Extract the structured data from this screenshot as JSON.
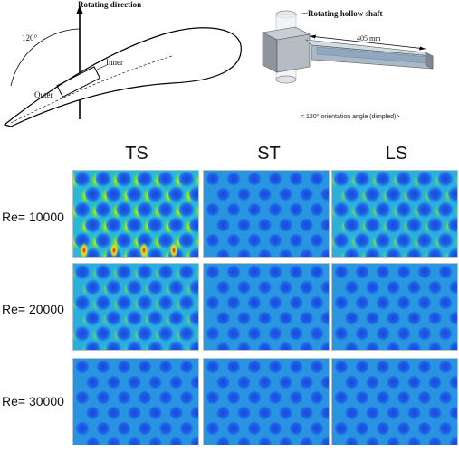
{
  "schematic": {
    "rotating_direction": "Rotating direction",
    "angle_label": "120°",
    "inner_label": "Inner",
    "outer_label": "Outer"
  },
  "apparatus": {
    "shaft_label": "Rotating hollow shaft",
    "length_label": "405 mm",
    "caption": "< 120° orientation angle (dimpled)>"
  },
  "grid": {
    "columns": [
      "TS",
      "ST",
      "LS"
    ],
    "rows": [
      "Re= 10000",
      "Re= 20000",
      "Re= 30000"
    ],
    "intensity": [
      [
        1.0,
        0.15,
        0.55
      ],
      [
        0.45,
        0.2,
        0.2
      ],
      [
        0.12,
        0.08,
        0.1
      ]
    ]
  },
  "colors": {
    "background_low": "#1a47d8",
    "dimple_ring": "#2a9fe8",
    "mid": "#2ad0c8",
    "high_green": "#5be03c",
    "peak_yellow": "#f5e51c",
    "peak_red": "#d81a12"
  }
}
